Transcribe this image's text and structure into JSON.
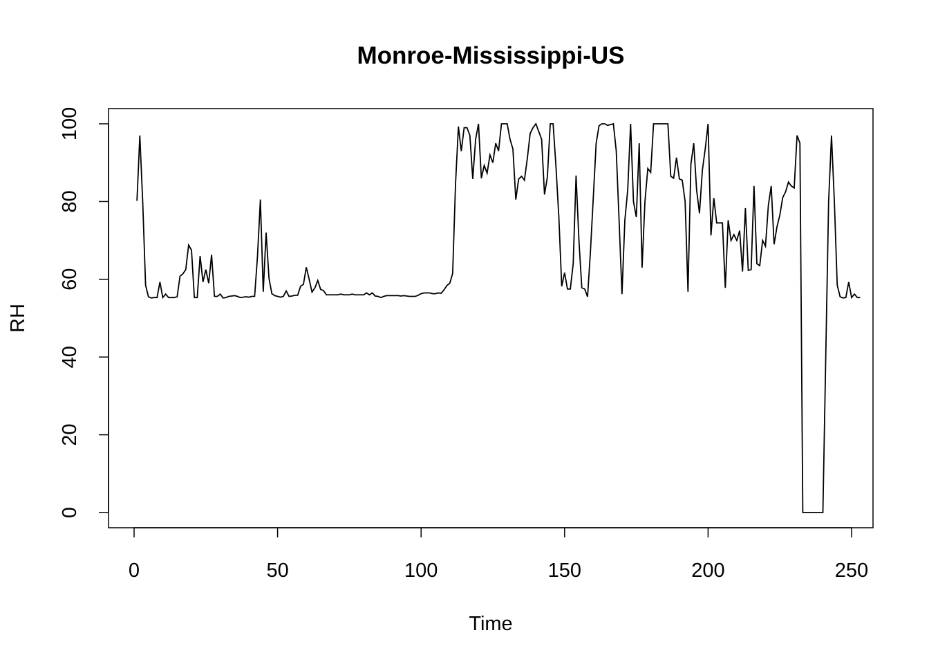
{
  "chart_data": {
    "type": "line",
    "title": "Monroe-Mississippi-US",
    "xlabel": "Time",
    "ylabel": "RH",
    "xlim": [
      0,
      250
    ],
    "ylim": [
      0,
      100
    ],
    "x_ticks": [
      0,
      50,
      100,
      150,
      200,
      250
    ],
    "y_ticks": [
      0,
      20,
      40,
      60,
      80,
      100
    ],
    "grid": false,
    "legend": "none",
    "line_color": "#000000",
    "series": [
      {
        "x_start": 1,
        "x_step": 1,
        "values": [
          80.2,
          97.0,
          80.0,
          58.5,
          55.5,
          55.2,
          55.3,
          55.3,
          59.3,
          55.3,
          56.2,
          55.3,
          55.3,
          55.3,
          55.5,
          60.8,
          61.4,
          62.5,
          68.8,
          67.5,
          55.3,
          55.3,
          66.0,
          59.3,
          62.5,
          59.0,
          66.3,
          55.6,
          55.6,
          56.2,
          55.2,
          55.3,
          55.6,
          55.7,
          55.8,
          55.6,
          55.3,
          55.4,
          55.5,
          55.4,
          55.6,
          55.6,
          66.0,
          80.5,
          56.8,
          72.0,
          60.3,
          56.3,
          55.8,
          55.6,
          55.4,
          55.6,
          57.0,
          55.6,
          55.7,
          55.9,
          55.9,
          58.2,
          58.7,
          63.1,
          60.0,
          56.7,
          57.8,
          59.7,
          57.4,
          57.1,
          56.0,
          56.0,
          56.0,
          56.0,
          56.0,
          56.2,
          56.0,
          56.0,
          56.0,
          56.2,
          56.0,
          56.0,
          56.0,
          56.0,
          56.5,
          56.0,
          56.5,
          55.7,
          55.6,
          55.3,
          55.6,
          55.8,
          55.8,
          55.8,
          55.8,
          55.8,
          55.7,
          55.8,
          55.7,
          55.6,
          55.6,
          55.6,
          55.9,
          56.3,
          56.5,
          56.5,
          56.5,
          56.3,
          56.3,
          56.5,
          56.4,
          57.3,
          58.4,
          59.0,
          61.5,
          84.5,
          99.3,
          93.0,
          99.0,
          99.0,
          97.0,
          85.8,
          96.0,
          100.0,
          86.0,
          89.3,
          87.3,
          92.0,
          90.0,
          95.0,
          93.0,
          100.0,
          100.0,
          100.0,
          96.0,
          93.5,
          80.5,
          85.8,
          86.5,
          85.5,
          91.0,
          97.5,
          99.0,
          100.0,
          98.0,
          96.0,
          81.8,
          86.3,
          100.0,
          100.0,
          89.0,
          76.0,
          58.2,
          61.7,
          57.5,
          57.5,
          64.0,
          86.7,
          70.0,
          57.8,
          57.5,
          55.5,
          67.0,
          81.0,
          95.0,
          99.5,
          100.0,
          100.0,
          99.6,
          99.8,
          100.0,
          93.0,
          75.0,
          56.2,
          75.2,
          83.0,
          100.0,
          80.0,
          76.0,
          95.0,
          63.0,
          80.0,
          88.5,
          87.5,
          100.0,
          100.0,
          100.0,
          100.0,
          100.0,
          100.0,
          86.5,
          86.0,
          91.3,
          85.8,
          85.5,
          80.0,
          56.8,
          89.5,
          95.0,
          83.0,
          77.0,
          88.0,
          93.5,
          100.0,
          71.3,
          80.9,
          74.5,
          74.5,
          74.5,
          57.8,
          75.2,
          70.0,
          71.5,
          70.0,
          72.5,
          62.0,
          78.3,
          62.3,
          62.5,
          84.0,
          64.0,
          63.5,
          70.0,
          68.5,
          79.0,
          84.0,
          69.0,
          73.5,
          76.5,
          81.0,
          82.5,
          85.0,
          84.0,
          83.5,
          97.0,
          95.0,
          0.0,
          0.0,
          0.0,
          0.0,
          0.0,
          0.0,
          0.0,
          0.0,
          40.0,
          80.0,
          97.0,
          80.0,
          58.5,
          55.5,
          55.2,
          55.3,
          59.3,
          55.3,
          56.2,
          55.3,
          55.3
        ]
      }
    ]
  }
}
